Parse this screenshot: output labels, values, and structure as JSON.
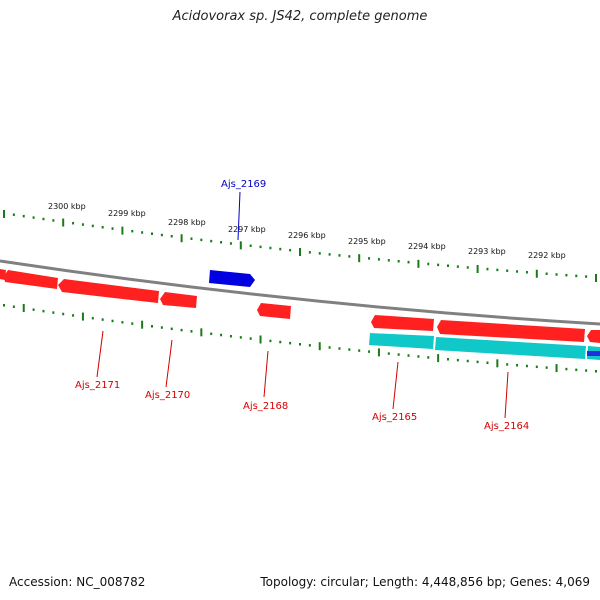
{
  "title": "Acidovorax sp. JS42, complete genome",
  "footer": {
    "accession": "Accession: NC_008782",
    "stats": "Topology: circular; Length: 4,448,856 bp; Genes: 4,069"
  },
  "colors": {
    "gene_fwd": "#0000e0",
    "gene_rev": "#ff0000",
    "cds": "#00cccc",
    "backbone": "#808080",
    "tick": "#1a7a1a",
    "label_fwd": "#0000c0",
    "label_rev": "#d40000"
  },
  "map": {
    "ticks": [
      "2300 kbp",
      "2299 kbp",
      "2298 kbp",
      "2297 kbp",
      "2296 kbp",
      "2295 kbp",
      "2294 kbp",
      "2293 kbp",
      "2292 kbp"
    ],
    "gene_labels": [
      {
        "id": "Ajs_2169",
        "strand": "forward"
      },
      {
        "id": "Ajs_2171",
        "strand": "reverse"
      },
      {
        "id": "Ajs_2170",
        "strand": "reverse"
      },
      {
        "id": "Ajs_2168",
        "strand": "reverse"
      },
      {
        "id": "Ajs_2165",
        "strand": "reverse"
      },
      {
        "id": "Ajs_2164",
        "strand": "reverse"
      }
    ]
  }
}
